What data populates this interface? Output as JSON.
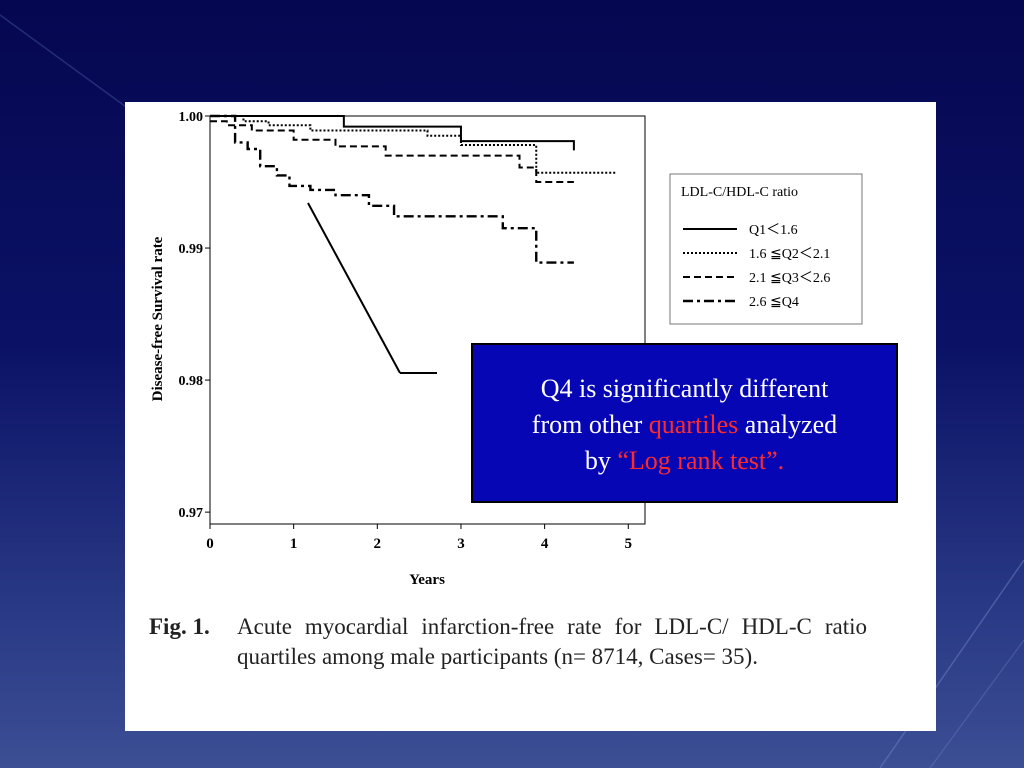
{
  "chart_data": {
    "type": "line",
    "step": true,
    "title": "",
    "xlabel": "Years",
    "ylabel": "Disease-free Survival rate",
    "xlim": [
      0,
      5.2
    ],
    "ylim": [
      0.9691,
      1.0
    ],
    "x_ticks": [
      "0",
      "1",
      "2",
      "3",
      "4",
      "5"
    ],
    "y_ticks": [
      "1.00",
      "0.99",
      "0.98",
      "0.97"
    ],
    "legend": {
      "title": "LDL-C/HDL-C ratio",
      "position": "right",
      "entries": [
        "Q1＜1.6",
        "1.6 ≦Q2＜2.1",
        "2.1 ≦Q3＜2.6",
        "2.6 ≦Q4"
      ]
    },
    "series": [
      {
        "name": "Q1＜1.6",
        "style": "solid",
        "x": [
          0,
          1.6,
          3.0,
          4.35
        ],
        "y": [
          1.0,
          0.9992,
          0.9981,
          0.9974
        ]
      },
      {
        "name": "1.6 ≦Q2＜2.1",
        "style": "dotted",
        "x": [
          0,
          0.4,
          0.7,
          1.2,
          2.6,
          3.0,
          3.9,
          4.85
        ],
        "y": [
          1.0,
          0.9996,
          0.9993,
          0.9989,
          0.9985,
          0.9978,
          0.9957,
          0.9957
        ]
      },
      {
        "name": "2.1 ≦Q3＜2.6",
        "style": "dashed",
        "x": [
          0,
          0.2,
          0.5,
          1.0,
          1.5,
          2.1,
          3.7,
          3.9,
          4.35
        ],
        "y": [
          0.9996,
          0.9993,
          0.9989,
          0.9982,
          0.9977,
          0.997,
          0.9961,
          0.995,
          0.995
        ]
      },
      {
        "name": "2.6 ≦Q4",
        "style": "dashdot",
        "x": [
          0,
          0.3,
          0.45,
          0.6,
          0.8,
          0.95,
          1.2,
          1.5,
          1.9,
          2.2,
          3.5,
          3.9,
          4.35
        ],
        "y": [
          1.0,
          0.998,
          0.9975,
          0.9962,
          0.9955,
          0.9947,
          0.9944,
          0.994,
          0.9932,
          0.9924,
          0.9915,
          0.9889,
          0.9889
        ]
      }
    ]
  },
  "caption": {
    "label": "Fig. 1.",
    "text": "Acute myocardial infarction-free rate for LDL-C/ HDL-C ratio quartiles among male participants (n= 8714, Cases= 35)."
  },
  "callout": {
    "line1": "Q4 is significantly different",
    "line2a": "from other ",
    "line2b": "quartiles",
    "line2c": " analyzed",
    "line3a": "by ",
    "line3b": "“Log rank test”."
  },
  "colors": {
    "background_top": "#050750",
    "panel": "#ffffff",
    "callout_bg": "#0606b5",
    "callout_text": "#ffffff",
    "callout_accent": "#ff2a2a"
  }
}
